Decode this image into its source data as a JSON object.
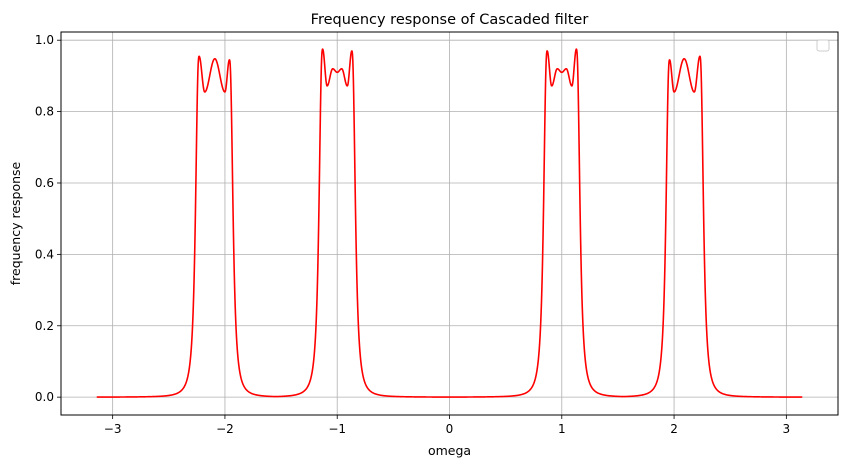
{
  "chart_data": {
    "type": "line",
    "title": "Frequency response of Cascaded filter",
    "xlabel": "omega",
    "ylabel": "frequency response",
    "xlim": [
      -3.46,
      3.46
    ],
    "ylim": [
      -0.05,
      1.023
    ],
    "xticks": [
      -3,
      -2,
      -1,
      0,
      1,
      2,
      3
    ],
    "yticks": [
      0.0,
      0.2,
      0.4,
      0.6,
      0.8,
      1.0
    ],
    "xtick_labels": [
      "−3",
      "−2",
      "−1",
      "0",
      "1",
      "2",
      "3"
    ],
    "ytick_labels": [
      "0.0",
      "0.2",
      "0.4",
      "0.6",
      "0.8",
      "1.0"
    ],
    "grid": true,
    "legend": {
      "placement": "top-right",
      "entries": []
    },
    "series": [
      {
        "color": "#ff0000",
        "x_range": [
          -3.1416,
          3.1416
        ],
        "baseline": 0.0,
        "passbands": [
          {
            "center": -2.09,
            "edges": [
              -2.23,
              -1.96
            ],
            "ripple_peaks": [
              {
                "x": -2.23,
                "y": 0.955
              },
              {
                "x": -2.18,
                "y": 0.855
              },
              {
                "x": -2.09,
                "y": 0.948
              },
              {
                "x": -2.0,
                "y": 0.855
              },
              {
                "x": -1.96,
                "y": 0.945
              }
            ]
          },
          {
            "center": -1.0,
            "edges": [
              -1.13,
              -0.86
            ],
            "ripple_peaks": [
              {
                "x": -1.13,
                "y": 0.975
              },
              {
                "x": -1.09,
                "y": 0.872
              },
              {
                "x": -1.04,
                "y": 0.92
              },
              {
                "x": -1.0,
                "y": 0.91
              },
              {
                "x": -0.96,
                "y": 0.92
              },
              {
                "x": -0.91,
                "y": 0.872
              },
              {
                "x": -0.87,
                "y": 0.97
              }
            ]
          },
          {
            "center": 1.0,
            "edges": [
              0.86,
              1.13
            ],
            "ripple_peaks": [
              {
                "x": 0.87,
                "y": 0.97
              },
              {
                "x": 0.91,
                "y": 0.872
              },
              {
                "x": 0.96,
                "y": 0.92
              },
              {
                "x": 1.0,
                "y": 0.91
              },
              {
                "x": 1.04,
                "y": 0.92
              },
              {
                "x": 1.09,
                "y": 0.872
              },
              {
                "x": 1.13,
                "y": 0.975
              }
            ]
          },
          {
            "center": 2.09,
            "edges": [
              1.96,
              2.23
            ],
            "ripple_peaks": [
              {
                "x": 1.96,
                "y": 0.945
              },
              {
                "x": 2.0,
                "y": 0.855
              },
              {
                "x": 2.09,
                "y": 0.948
              },
              {
                "x": 2.18,
                "y": 0.855
              },
              {
                "x": 2.23,
                "y": 0.955
              }
            ]
          }
        ]
      }
    ]
  },
  "colors": {
    "line": "#ff0000",
    "grid": "#b0b0b0",
    "axes": "#000000",
    "background": "#ffffff"
  }
}
